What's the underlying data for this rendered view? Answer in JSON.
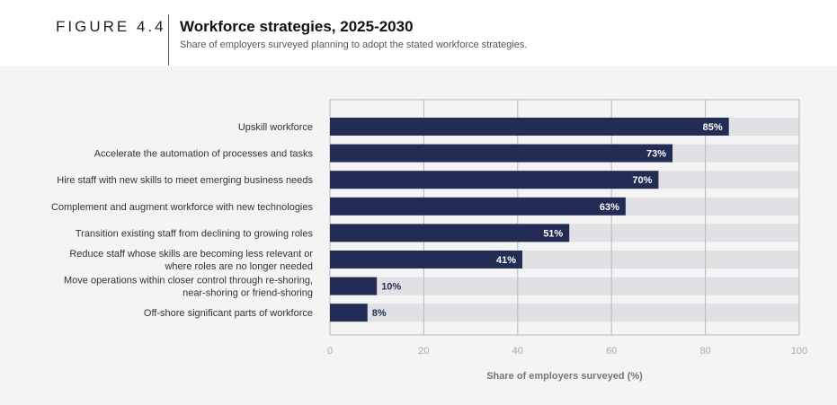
{
  "figure": {
    "label": "FIGURE 4.4",
    "title": "Workforce strategies, 2025-2030",
    "subtitle": "Share of employers surveyed planning to adopt the stated workforce strategies."
  },
  "colors": {
    "bar": "#232c55",
    "track": "#e1e1e5",
    "grid": "#b8b8b8",
    "label_inside": "#ffffff",
    "label_outside": "#232c55"
  },
  "chart_data": {
    "type": "bar",
    "orientation": "horizontal",
    "categories": [
      [
        "Upskill workforce"
      ],
      [
        "Accelerate the automation of processes and tasks"
      ],
      [
        "Hire staff with new skills to meet emerging business needs"
      ],
      [
        "Complement and augment workforce with new technologies"
      ],
      [
        "Transition existing staff from declining to growing roles"
      ],
      [
        "Reduce staff whose skills are becoming less relevant or",
        "where roles are no longer needed"
      ],
      [
        "Move operations within closer control through re-shoring,",
        "near-shoring or friend-shoring"
      ],
      [
        "Off-shore significant parts of workforce"
      ]
    ],
    "values": [
      85,
      73,
      70,
      63,
      51,
      41,
      10,
      8
    ],
    "value_labels": [
      "85%",
      "73%",
      "70%",
      "63%",
      "51%",
      "41%",
      "10%",
      "8%"
    ],
    "xlabel": "Share of employers surveyed (%)",
    "xlim": [
      0,
      100
    ],
    "xticks": [
      "0",
      "20",
      "40",
      "60",
      "80",
      "100"
    ],
    "grid": true
  }
}
